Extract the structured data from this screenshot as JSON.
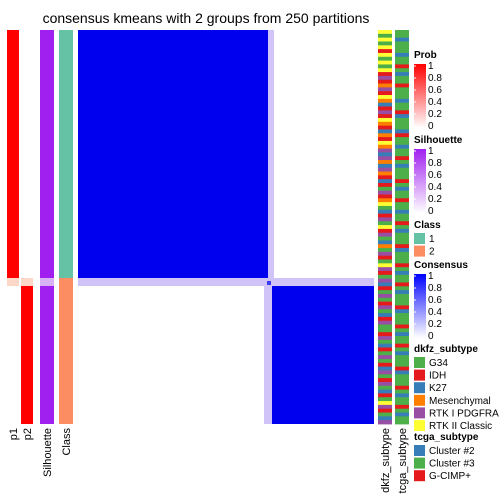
{
  "chart_data": {
    "type": "heatmap",
    "title": "consensus kmeans with 2 groups from 250 partitions",
    "row_groups": [
      {
        "class": "1",
        "rows": 63
      },
      {
        "class": "2",
        "rows": 40
      }
    ],
    "annotation_columns": [
      "p1",
      "p2",
      "Silhouette",
      "Class"
    ],
    "right_annotation_columns": [
      "dkfz_subtype",
      "tcga_subtype"
    ],
    "matrix_blocks": [
      {
        "rows": "class 1",
        "cols": "class 1",
        "consensus": 1
      },
      {
        "rows": "class 1",
        "cols": "class 2",
        "consensus": 0
      },
      {
        "rows": "class 2",
        "cols": "class 1",
        "consensus": 0
      },
      {
        "rows": "class 2",
        "cols": "class 2",
        "consensus": 1
      }
    ],
    "legends": [
      {
        "title": "Prob",
        "type": "continuous",
        "ticks": [
          "1",
          "0.8",
          "0.6",
          "0.4",
          "0.2",
          "0"
        ],
        "colors": [
          "#ff0000",
          "#ffffff"
        ]
      },
      {
        "title": "Silhouette",
        "type": "continuous",
        "ticks": [
          "1",
          "0.8",
          "0.6",
          "0.4",
          "0.2",
          "0"
        ],
        "colors": [
          "#a020f0",
          "#ffffff"
        ]
      },
      {
        "title": "Class",
        "type": "discrete",
        "items": [
          {
            "label": "1",
            "color": "#66c2a5"
          },
          {
            "label": "2",
            "color": "#fc8d62"
          }
        ]
      },
      {
        "title": "Consensus",
        "type": "continuous",
        "ticks": [
          "1",
          "0.8",
          "0.6",
          "0.4",
          "0.2",
          "0"
        ],
        "colors": [
          "#0000ff",
          "#ffffff"
        ]
      },
      {
        "title": "dkfz_subtype",
        "type": "discrete",
        "items": [
          {
            "label": "G34",
            "color": "#4daf4a"
          },
          {
            "label": "IDH",
            "color": "#e41a1c"
          },
          {
            "label": "K27",
            "color": "#377eb8"
          },
          {
            "label": "Mesenchymal",
            "color": "#ff7f00"
          },
          {
            "label": "RTK I PDGFRA",
            "color": "#984ea3"
          },
          {
            "label": "RTK II Classic",
            "color": "#ffff33"
          }
        ]
      },
      {
        "title": "tcga_subtype",
        "type": "discrete",
        "items": [
          {
            "label": "Cluster #2",
            "color": "#377eb8"
          },
          {
            "label": "Cluster #3",
            "color": "#4daf4a"
          },
          {
            "label": "G-CIMP+",
            "color": "#e41a1c"
          }
        ]
      }
    ],
    "dkfz_sequence": [
      "Y",
      "G",
      "Y",
      "G",
      "Y",
      "I",
      "Y",
      "G",
      "Y",
      "G",
      "Y",
      "I",
      "P",
      "I",
      "O",
      "P",
      "I",
      "Y",
      "O",
      "K",
      "I",
      "P",
      "I",
      "Y",
      "O",
      "I",
      "K",
      "O",
      "I",
      "Y",
      "O",
      "P",
      "K",
      "P",
      "O",
      "K",
      "P",
      "O",
      "I",
      "K",
      "I",
      "G",
      "P",
      "I",
      "O",
      "Y",
      "G",
      "K",
      "I",
      "P",
      "G",
      "Y",
      "I",
      "P",
      "G",
      "K",
      "O",
      "G",
      "P",
      "I",
      "G",
      "Y",
      "P",
      "I",
      "G",
      "P",
      "K",
      "I",
      "G",
      "P",
      "G",
      "I",
      "P",
      "G",
      "K",
      "I",
      "P",
      "G",
      "G",
      "I",
      "P",
      "G",
      "K",
      "I",
      "G",
      "P",
      "G",
      "I",
      "K",
      "P",
      "G",
      "I",
      "P",
      "G",
      "K",
      "I",
      "G",
      "Y",
      "P",
      "I",
      "G",
      "K",
      "P"
    ],
    "tcga_sequence": [
      "G",
      "G",
      "K",
      "G",
      "G",
      "G",
      "K",
      "G",
      "G",
      "I",
      "G",
      "K",
      "G",
      "G",
      "I",
      "G",
      "G",
      "G",
      "K",
      "G",
      "G",
      "I",
      "K",
      "G",
      "G",
      "G",
      "K",
      "I",
      "G",
      "G",
      "K",
      "G",
      "G",
      "I",
      "G",
      "K",
      "G",
      "G",
      "G",
      "I",
      "G",
      "K",
      "G",
      "G",
      "I",
      "G",
      "G",
      "K",
      "G",
      "G",
      "I",
      "G",
      "K",
      "G",
      "G",
      "G",
      "I",
      "K",
      "G",
      "G",
      "G",
      "I",
      "G",
      "K",
      "G",
      "G",
      "I",
      "G",
      "K",
      "G",
      "G",
      "G",
      "I",
      "K",
      "G",
      "G",
      "G",
      "I",
      "G",
      "K",
      "G",
      "G",
      "I",
      "G",
      "K",
      "G",
      "G",
      "G",
      "I",
      "K",
      "G",
      "G",
      "G",
      "I",
      "G",
      "K",
      "G",
      "G",
      "I",
      "G",
      "K",
      "G",
      "G"
    ]
  }
}
